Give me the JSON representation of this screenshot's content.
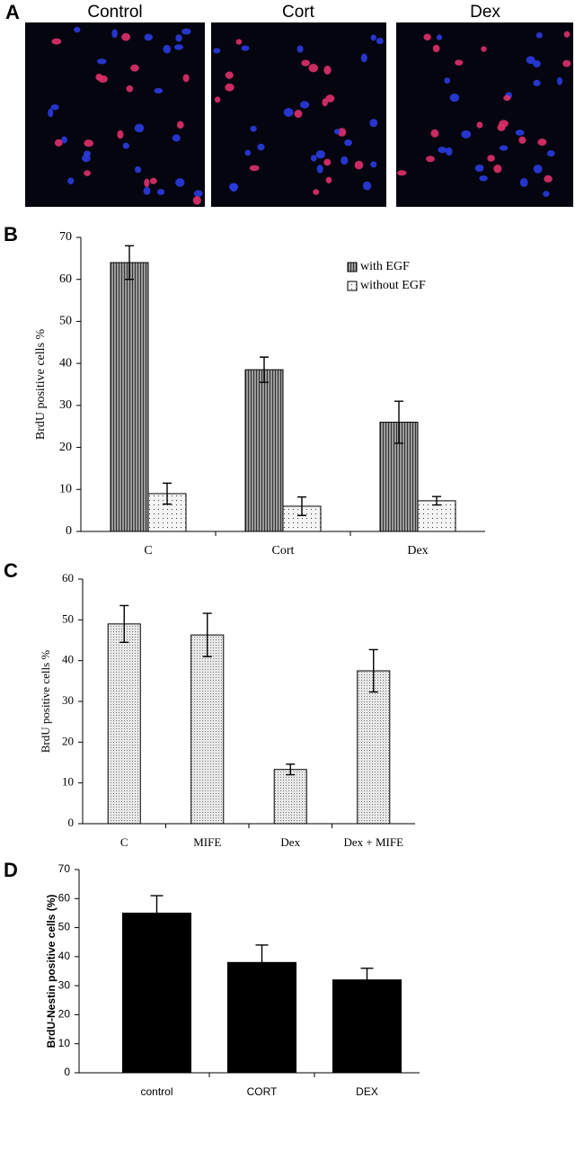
{
  "figure_panel": {
    "label": "A",
    "titles": [
      "Control",
      "Cort",
      "Dex"
    ]
  },
  "chart_data": [
    {
      "type": "bar",
      "panel_label": "B",
      "ylabel": "BrdU positive cells %",
      "categories": [
        "C",
        "Cort",
        "Dex"
      ],
      "series": [
        {
          "name": "with EGF",
          "color": "#9a9a9a",
          "pattern": "vertical-lines",
          "values": [
            64,
            38.5,
            26
          ],
          "errors": [
            4,
            3,
            5
          ]
        },
        {
          "name": "without EGF",
          "color": "#f4f4f4",
          "pattern": "dots",
          "values": [
            9,
            6,
            7.3
          ],
          "errors": [
            2.5,
            2.2,
            1
          ]
        }
      ],
      "ylim": [
        0,
        70
      ],
      "yticks": [
        0,
        10,
        20,
        30,
        40,
        50,
        60,
        70
      ],
      "error_bars": "both",
      "legend": "upper right"
    },
    {
      "type": "bar",
      "panel_label": "C",
      "ylabel": "BrdU positive cells %",
      "categories": [
        "C",
        "MIFE",
        "Dex",
        "Dex + MIFE"
      ],
      "values": [
        49,
        46.3,
        13.3,
        37.5
      ],
      "errors": [
        4.5,
        5.3,
        1.3,
        5.2
      ],
      "color": "#e8e8e8",
      "pattern": "fine-dots",
      "ylim": [
        0,
        60
      ],
      "yticks": [
        0,
        10,
        20,
        30,
        40,
        50,
        60
      ],
      "error_bars": "both"
    },
    {
      "type": "bar",
      "panel_label": "D",
      "ylabel": "BrdU-Nestin positive cells (%)",
      "categories": [
        "control",
        "CORT",
        "DEX"
      ],
      "values": [
        55,
        38,
        32
      ],
      "errors": [
        6,
        6,
        4
      ],
      "color": "#000000",
      "ylim": [
        0,
        70
      ],
      "yticks": [
        0,
        10,
        20,
        30,
        40,
        50,
        60,
        70
      ],
      "error_bars": "upper"
    }
  ]
}
